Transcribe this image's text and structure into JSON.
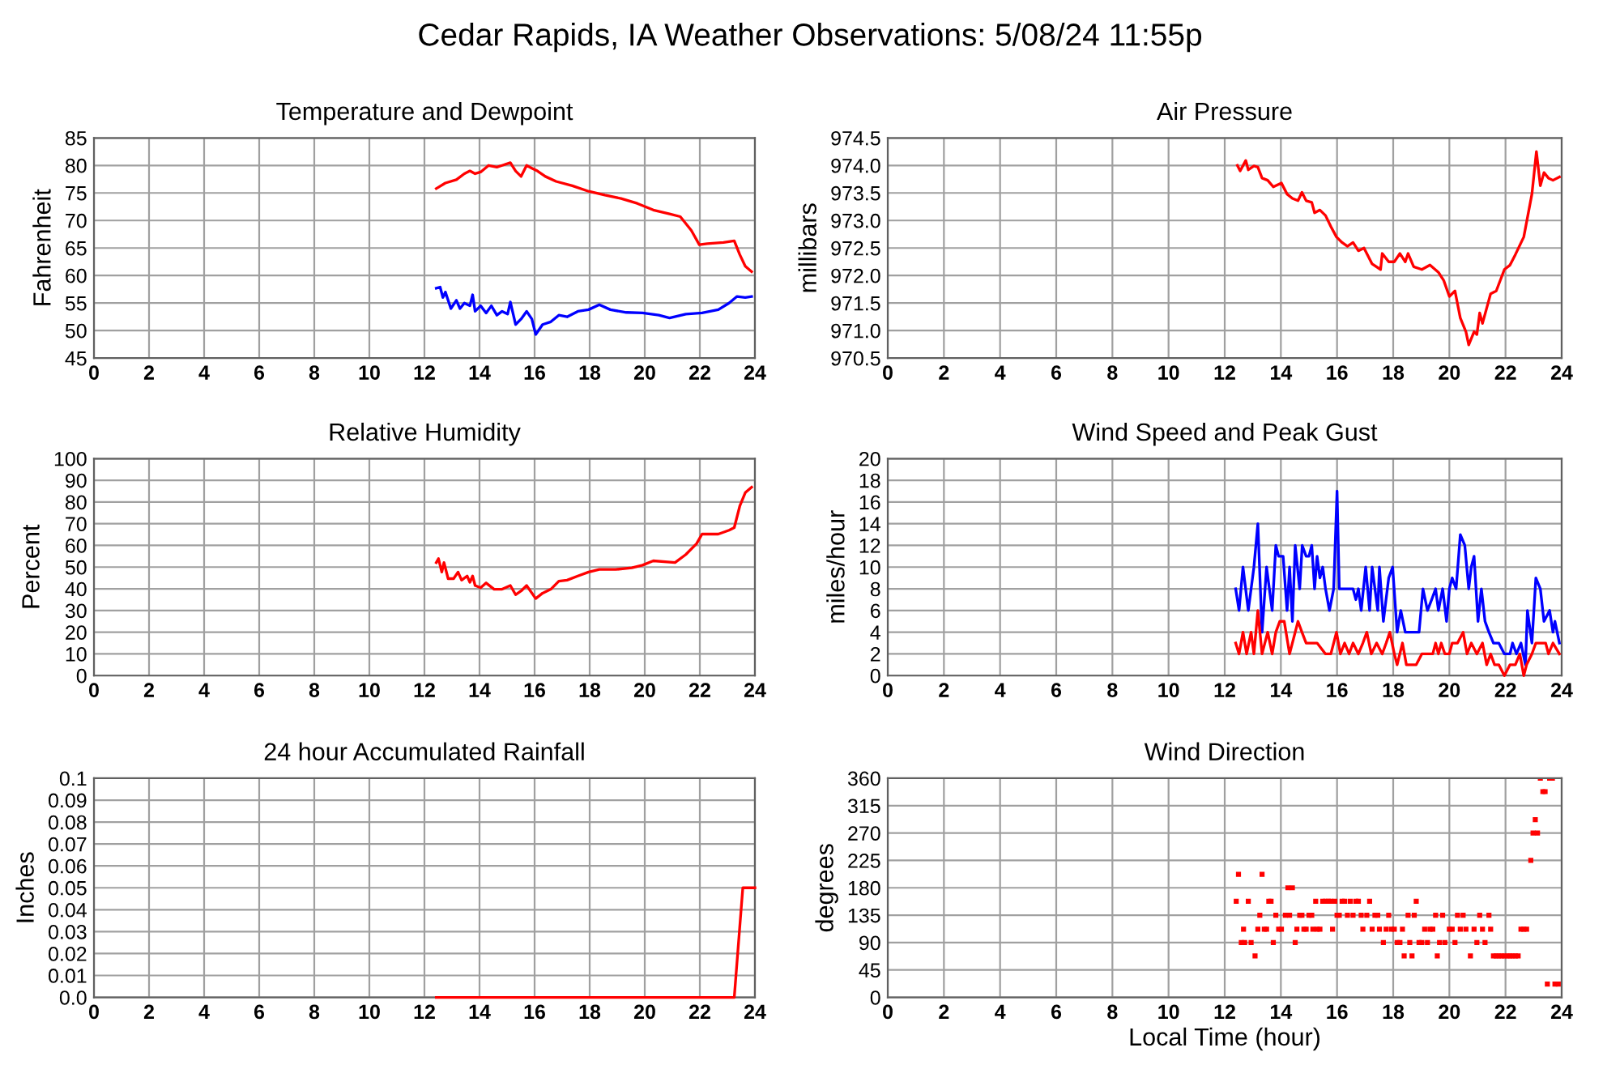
{
  "chart_data": [
    {
      "type": "line",
      "title": "Temperature and Dewpoint",
      "ylabel": "Fahrenheit",
      "annotations": [
        "Cedar Rapids, IA Weather Observations: 5/08/24 11:55p"
      ],
      "grid": true,
      "xlim": [
        0,
        24
      ],
      "xticks": [
        0,
        2,
        4,
        6,
        8,
        10,
        12,
        14,
        16,
        18,
        20,
        22,
        24
      ],
      "ylim": [
        45,
        85
      ],
      "yticks": [
        45,
        50,
        55,
        60,
        65,
        70,
        75,
        80,
        85
      ],
      "series": [
        {
          "color": "#ff0000",
          "x": [
            12.43,
            12.76,
            13.16,
            13.45,
            13.65,
            13.84,
            14.04,
            14.33,
            14.63,
            14.82,
            15.12,
            15.31,
            15.51,
            15.71,
            15.9,
            16.1,
            16.39,
            16.78,
            17.37,
            17.96,
            18.55,
            19.14,
            19.73,
            20.31,
            20.9,
            21.29,
            21.69,
            21.98,
            22.27,
            22.86,
            23.25,
            23.45,
            23.65,
            23.88
          ],
          "values": [
            75.8,
            76.8,
            77.4,
            78.5,
            79.0,
            78.5,
            78.8,
            80.0,
            79.7,
            80.0,
            80.5,
            79.0,
            78.0,
            80.0,
            79.5,
            79.0,
            78.0,
            77.1,
            76.3,
            75.3,
            74.6,
            74.0,
            73.1,
            71.9,
            71.2,
            70.7,
            68.2,
            65.6,
            65.8,
            66.0,
            66.3,
            63.8,
            61.7,
            60.7
          ]
        },
        {
          "color": "#0000ff",
          "x": [
            12.43,
            12.57,
            12.67,
            12.76,
            12.96,
            13.16,
            13.29,
            13.45,
            13.65,
            13.75,
            13.84,
            14.04,
            14.24,
            14.43,
            14.63,
            14.82,
            15.02,
            15.12,
            15.31,
            15.51,
            15.71,
            15.9,
            16.04,
            16.29,
            16.59,
            16.88,
            17.18,
            17.57,
            17.96,
            18.35,
            18.75,
            19.33,
            19.92,
            20.51,
            20.9,
            21.49,
            22.08,
            22.67,
            23.06,
            23.35,
            23.65,
            23.88
          ],
          "values": [
            57.7,
            57.9,
            56.0,
            57.0,
            54.0,
            55.5,
            54.0,
            55.0,
            54.5,
            56.5,
            53.5,
            54.5,
            53.2,
            54.5,
            52.8,
            53.5,
            53.0,
            55.2,
            51.1,
            52.1,
            53.5,
            52.1,
            49.3,
            51.1,
            51.6,
            52.8,
            52.5,
            53.5,
            53.8,
            54.7,
            53.8,
            53.3,
            53.2,
            52.8,
            52.3,
            53.0,
            53.2,
            53.8,
            55.0,
            56.2,
            56.0,
            56.2
          ]
        }
      ]
    },
    {
      "type": "line",
      "title": "Air Pressure",
      "ylabel": "millibars",
      "grid": true,
      "xlim": [
        0,
        24
      ],
      "xticks": [
        0,
        2,
        4,
        6,
        8,
        10,
        12,
        14,
        16,
        18,
        20,
        22,
        24
      ],
      "ylim": [
        970.5,
        974.5
      ],
      "yticks": [
        970.5,
        {
          "value": 971,
          "label": "971.0"
        },
        971.5,
        {
          "value": 972,
          "label": "972.0"
        },
        972.5,
        {
          "value": 973,
          "label": "973.0"
        },
        973.5,
        {
          "value": 974,
          "label": "974.0"
        },
        974.5
      ],
      "series": [
        {
          "color": "#ff0000",
          "x": [
            12.45,
            12.55,
            12.75,
            12.84,
            13.04,
            13.18,
            13.33,
            13.53,
            13.73,
            14.02,
            14.22,
            14.41,
            14.61,
            14.75,
            14.9,
            15.1,
            15.2,
            15.39,
            15.59,
            15.78,
            15.98,
            16.18,
            16.37,
            16.57,
            16.76,
            16.96,
            17.25,
            17.55,
            17.61,
            17.84,
            18.04,
            18.24,
            18.43,
            18.53,
            18.73,
            19.02,
            19.31,
            19.61,
            19.8,
            20.0,
            20.2,
            20.39,
            20.59,
            20.69,
            20.88,
            20.98,
            21.08,
            21.18,
            21.47,
            21.67,
            21.96,
            22.16,
            22.35,
            22.65,
            22.94,
            23.1,
            23.24,
            23.37,
            23.53,
            23.69,
            23.92
          ],
          "values": [
            974.0,
            973.9,
            974.09,
            973.92,
            973.99,
            973.97,
            973.77,
            973.73,
            973.61,
            973.68,
            973.48,
            973.4,
            973.36,
            973.51,
            973.36,
            973.33,
            973.14,
            973.19,
            973.09,
            972.89,
            972.7,
            972.6,
            972.53,
            972.6,
            972.45,
            972.5,
            972.21,
            972.11,
            972.4,
            972.25,
            972.25,
            972.4,
            972.25,
            972.4,
            972.16,
            972.11,
            972.19,
            972.06,
            971.91,
            971.62,
            971.72,
            971.23,
            970.98,
            970.74,
            970.98,
            970.93,
            971.32,
            971.13,
            971.67,
            971.72,
            972.11,
            972.19,
            972.38,
            972.7,
            973.48,
            974.25,
            973.63,
            973.87,
            973.77,
            973.73,
            973.79
          ]
        }
      ]
    },
    {
      "type": "line",
      "title": "Relative Humidity",
      "ylabel": "Percent",
      "grid": true,
      "xlim": [
        0,
        24
      ],
      "xticks": [
        0,
        2,
        4,
        6,
        8,
        10,
        12,
        14,
        16,
        18,
        20,
        22,
        24
      ],
      "ylim": [
        0,
        100
      ],
      "yticks": [
        0,
        10,
        20,
        30,
        40,
        50,
        60,
        70,
        80,
        90,
        100
      ],
      "series": [
        {
          "color": "#ff0000",
          "x": [
            12.43,
            12.51,
            12.63,
            12.71,
            12.86,
            13.06,
            13.22,
            13.35,
            13.55,
            13.65,
            13.75,
            13.84,
            14.04,
            14.24,
            14.53,
            14.82,
            15.12,
            15.31,
            15.51,
            15.71,
            16.04,
            16.29,
            16.59,
            16.88,
            17.18,
            17.57,
            17.96,
            18.35,
            18.94,
            19.53,
            19.92,
            20.31,
            21.1,
            21.49,
            21.88,
            22.08,
            22.67,
            23.06,
            23.25,
            23.45,
            23.65,
            23.88
          ],
          "values": [
            52.1,
            53.9,
            47.7,
            52.1,
            44.7,
            44.7,
            47.7,
            44.0,
            45.9,
            43.0,
            45.9,
            41.5,
            40.5,
            42.7,
            39.8,
            39.8,
            41.5,
            37.3,
            39.0,
            41.5,
            35.5,
            38.0,
            39.8,
            43.5,
            44.0,
            45.9,
            47.7,
            48.9,
            48.9,
            49.7,
            50.9,
            52.9,
            52.1,
            55.8,
            60.8,
            65.2,
            65.2,
            67.0,
            68.2,
            78.1,
            84.3,
            86.8
          ]
        }
      ]
    },
    {
      "type": "line",
      "title": "Wind Speed and Peak Gust",
      "ylabel": "miles/hour",
      "grid": true,
      "xlim": [
        0,
        24
      ],
      "xticks": [
        0,
        2,
        4,
        6,
        8,
        10,
        12,
        14,
        16,
        18,
        20,
        22,
        24
      ],
      "ylim": [
        0,
        20
      ],
      "yticks": [
        0,
        2,
        4,
        6,
        8,
        10,
        12,
        14,
        16,
        18,
        20
      ],
      "series": [
        {
          "color": "#0000ff",
          "x": [
            12.39,
            12.51,
            12.65,
            12.84,
            13.04,
            13.18,
            13.33,
            13.49,
            13.69,
            13.82,
            13.92,
            14.08,
            14.22,
            14.31,
            14.41,
            14.51,
            14.67,
            14.76,
            14.9,
            15.0,
            15.1,
            15.2,
            15.29,
            15.39,
            15.49,
            15.59,
            15.73,
            15.88,
            16.0,
            16.08,
            16.37,
            16.57,
            16.67,
            16.76,
            16.86,
            17.02,
            17.16,
            17.25,
            17.45,
            17.51,
            17.65,
            17.84,
            17.98,
            18.14,
            18.27,
            18.43,
            18.92,
            19.06,
            19.22,
            19.37,
            19.51,
            19.61,
            19.76,
            19.9,
            20.0,
            20.1,
            20.24,
            20.39,
            20.55,
            20.69,
            20.78,
            20.88,
            21.02,
            21.14,
            21.27,
            21.41,
            21.57,
            21.76,
            21.96,
            22.16,
            22.25,
            22.39,
            22.55,
            22.71,
            22.78,
            22.94,
            23.08,
            23.24,
            23.37,
            23.57,
            23.69,
            23.76,
            23.92
          ],
          "values": [
            8,
            6,
            10,
            6,
            10,
            14,
            4,
            10,
            6,
            12,
            11,
            11,
            6,
            10,
            5,
            12,
            8,
            12,
            11,
            11,
            12,
            8,
            11,
            9,
            10,
            8,
            6,
            8,
            17,
            8,
            8,
            8,
            7,
            8,
            6,
            10,
            6,
            10,
            6,
            10,
            5,
            9,
            10,
            4,
            6,
            4,
            4,
            8,
            6,
            7,
            8,
            6,
            8,
            5,
            8,
            9,
            8,
            13,
            12,
            8,
            10,
            11,
            5,
            8,
            5,
            4,
            3,
            3,
            2,
            2,
            3,
            2,
            3,
            1,
            6,
            3,
            9,
            8,
            5,
            6,
            4,
            5,
            3
          ]
        },
        {
          "color": "#ff0000",
          "x": [
            12.39,
            12.51,
            12.65,
            12.78,
            12.94,
            13.04,
            13.18,
            13.33,
            13.53,
            13.69,
            13.82,
            13.96,
            14.12,
            14.31,
            14.51,
            14.61,
            14.75,
            14.9,
            15.1,
            15.29,
            15.59,
            15.78,
            15.98,
            16.12,
            16.27,
            16.43,
            16.57,
            16.76,
            16.92,
            17.06,
            17.22,
            17.41,
            17.61,
            17.75,
            17.88,
            18.04,
            18.14,
            18.33,
            18.47,
            18.82,
            19.02,
            19.41,
            19.51,
            19.61,
            19.71,
            19.84,
            20.0,
            20.1,
            20.29,
            20.49,
            20.63,
            20.78,
            20.98,
            21.18,
            21.33,
            21.47,
            21.61,
            21.76,
            21.96,
            22.16,
            22.35,
            22.51,
            22.65,
            22.75,
            22.94,
            23.08,
            23.24,
            23.43,
            23.53,
            23.69,
            23.92
          ],
          "values": [
            3,
            2,
            4,
            2,
            4,
            2,
            6,
            2,
            4,
            2,
            4,
            5,
            5,
            2,
            4,
            5,
            4,
            3,
            3,
            3,
            2,
            2,
            4,
            2,
            3,
            2,
            3,
            2,
            3,
            4,
            2,
            3,
            2,
            3,
            4,
            2,
            1,
            3,
            1,
            1,
            2,
            2,
            3,
            2,
            3,
            2,
            2,
            3,
            3,
            4,
            2,
            3,
            2,
            3,
            1,
            2,
            1,
            1,
            0,
            1,
            1,
            2,
            0,
            1,
            2,
            3,
            3,
            3,
            2,
            3,
            2
          ]
        }
      ]
    },
    {
      "type": "line",
      "title": "24 hour Accumulated Rainfall",
      "ylabel": "Inches",
      "grid": true,
      "xlim": [
        0,
        24
      ],
      "xticks": [
        0,
        2,
        4,
        6,
        8,
        10,
        12,
        14,
        16,
        18,
        20,
        22,
        24
      ],
      "ylim": [
        0,
        0.1
      ],
      "yticks": [
        {
          "value": 0,
          "label": "0.0"
        },
        0.01,
        0.02,
        0.03,
        0.04,
        0.05,
        0.06,
        0.07,
        0.08,
        0.09,
        0.1
      ],
      "series": [
        {
          "color": "#ff0000",
          "x": [
            12.43,
            23.25,
            23.56,
            24
          ],
          "values": [
            0,
            0,
            0.05,
            0.05
          ]
        }
      ]
    },
    {
      "type": "scatter",
      "title": "Wind Direction",
      "ylabel": "degrees",
      "xlabel": "Local Time (hour)",
      "marker": "square",
      "grid": true,
      "xlim": [
        0,
        24
      ],
      "xticks": [
        0,
        2,
        4,
        6,
        8,
        10,
        12,
        14,
        16,
        18,
        20,
        22,
        24
      ],
      "ylim": [
        0,
        360
      ],
      "yticks": [
        0,
        45,
        90,
        135,
        180,
        225,
        270,
        315,
        360
      ],
      "series": [
        {
          "color": "#ff0000",
          "x": [
            12.49,
            12.41,
            12.67,
            12.59,
            12.71,
            12.84,
            12.94,
            13.08,
            13.18,
            13.25,
            13.33,
            13.41,
            13.49,
            13.57,
            13.65,
            13.73,
            13.82,
            13.92,
            14.02,
            14.16,
            14.25,
            14.31,
            14.41,
            14.51,
            14.57,
            14.67,
            14.75,
            14.82,
            14.9,
            15.0,
            15.1,
            15.14,
            15.24,
            15.29,
            15.39,
            15.49,
            15.59,
            15.69,
            15.78,
            15.84,
            15.92,
            16.0,
            16.08,
            16.18,
            16.27,
            16.37,
            16.47,
            16.57,
            16.67,
            16.76,
            16.86,
            16.92,
            17.06,
            17.16,
            17.25,
            17.35,
            17.45,
            17.51,
            17.65,
            17.75,
            17.84,
            17.94,
            18.04,
            18.14,
            18.24,
            18.33,
            18.39,
            18.53,
            18.59,
            18.67,
            18.75,
            18.82,
            18.92,
            19.02,
            19.12,
            19.22,
            19.31,
            19.41,
            19.51,
            19.57,
            19.65,
            19.76,
            19.84,
            20.0,
            20.1,
            20.2,
            20.29,
            20.39,
            20.49,
            20.59,
            20.75,
            20.88,
            20.98,
            21.08,
            21.18,
            21.27,
            21.41,
            21.47,
            21.57,
            21.67,
            21.76,
            21.86,
            21.96,
            22.06,
            22.16,
            22.25,
            22.35,
            22.45,
            22.55,
            22.65,
            22.75,
            22.9,
            22.98,
            23.06,
            23.14,
            23.24,
            23.33,
            23.41,
            23.49,
            23.57,
            23.67,
            23.76,
            23.88
          ],
          "values": [
            202,
            158,
            112,
            90,
            90,
            158,
            90,
            68,
            112,
            135,
            202,
            112,
            112,
            158,
            158,
            90,
            135,
            112,
            112,
            135,
            180,
            135,
            180,
            90,
            112,
            135,
            135,
            112,
            112,
            135,
            135,
            112,
            158,
            112,
            112,
            158,
            158,
            158,
            158,
            112,
            158,
            135,
            135,
            158,
            158,
            135,
            158,
            135,
            158,
            158,
            135,
            112,
            135,
            158,
            112,
            135,
            135,
            112,
            90,
            112,
            135,
            112,
            112,
            90,
            90,
            112,
            68,
            135,
            90,
            68,
            135,
            158,
            90,
            90,
            112,
            90,
            112,
            112,
            135,
            68,
            90,
            135,
            90,
            112,
            112,
            90,
            135,
            112,
            135,
            112,
            68,
            112,
            90,
            135,
            112,
            90,
            135,
            112,
            68,
            68,
            68,
            68,
            68,
            68,
            68,
            68,
            68,
            68,
            112,
            112,
            112,
            225,
            270,
            292,
            270,
            360,
            338,
            338,
            22,
            360,
            360,
            22,
            22
          ]
        }
      ]
    }
  ]
}
